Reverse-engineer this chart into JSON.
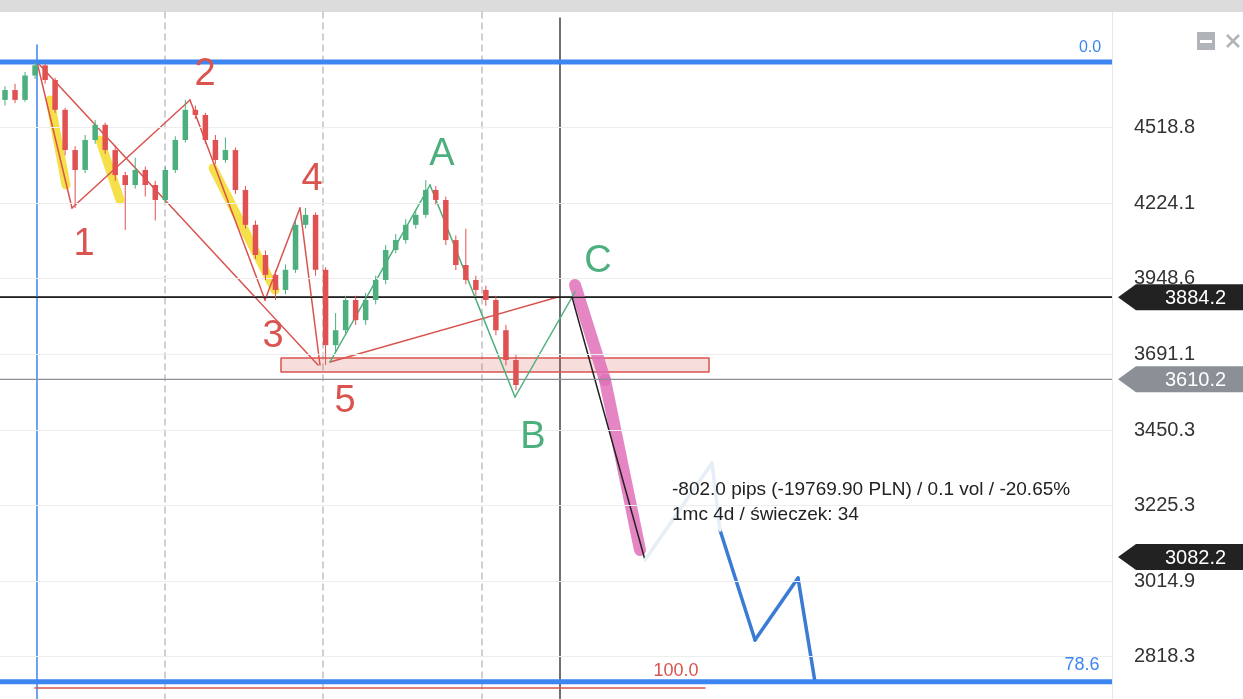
{
  "chart_data": {
    "type": "candlestick",
    "categories": [
      null,
      null,
      null,
      null,
      null,
      null,
      null,
      null,
      null,
      null,
      null,
      null,
      null,
      null,
      null,
      null,
      null,
      null,
      null,
      null,
      null,
      null,
      null,
      null,
      null,
      null,
      null,
      null,
      null,
      null,
      null,
      null,
      null,
      null,
      null,
      null,
      null,
      null,
      null,
      null,
      null,
      null,
      null,
      null,
      null,
      null,
      null,
      null,
      null,
      null,
      null,
      null,
      null,
      null,
      null,
      null,
      null,
      null,
      null,
      null,
      null,
      null,
      null,
      null,
      null,
      null,
      null,
      null,
      null,
      null,
      null,
      null,
      null,
      null,
      null,
      null,
      null,
      null,
      null,
      null,
      null,
      null,
      null,
      null,
      null,
      null,
      null,
      null,
      null,
      null,
      null,
      null,
      null,
      null,
      null,
      null,
      null,
      null,
      null,
      null,
      null,
      null,
      null,
      null,
      null,
      null,
      null,
      null,
      null,
      null,
      null
    ],
    "ohlc": [
      [
        4633,
        4690,
        4610,
        4674
      ],
      [
        4674,
        4700,
        4620,
        4633
      ],
      [
        4633,
        4750,
        4625,
        4735
      ],
      [
        4735,
        4792,
        4720,
        4778
      ],
      [
        4778,
        4785,
        4700,
        4716
      ],
      [
        4716,
        4725,
        4580,
        4592
      ],
      [
        4592,
        4600,
        4410,
        4430
      ],
      [
        4430,
        4445,
        4207,
        4352
      ],
      [
        4352,
        4490,
        4340,
        4470
      ],
      [
        4470,
        4550,
        4455,
        4531
      ],
      [
        4531,
        4540,
        4415,
        4430
      ],
      [
        4430,
        4450,
        4310,
        4332
      ],
      [
        4332,
        4345,
        4125,
        4294
      ],
      [
        4294,
        4400,
        4280,
        4352
      ],
      [
        4352,
        4365,
        4250,
        4294
      ],
      [
        4294,
        4310,
        4160,
        4237
      ],
      [
        4237,
        4365,
        4225,
        4352
      ],
      [
        4352,
        4485,
        4340,
        4470
      ],
      [
        4470,
        4633,
        4460,
        4592
      ],
      [
        4592,
        4610,
        4555,
        4571
      ],
      [
        4571,
        4580,
        4455,
        4470
      ],
      [
        4470,
        4490,
        4375,
        4391
      ],
      [
        4391,
        4480,
        4380,
        4430
      ],
      [
        4430,
        4440,
        4260,
        4275
      ],
      [
        4275,
        4290,
        4130,
        4144
      ],
      [
        4144,
        4160,
        4020,
        4034
      ],
      [
        4034,
        4050,
        3945,
        3963
      ],
      [
        3963,
        3980,
        3875,
        3910
      ],
      [
        3910,
        4000,
        3895,
        3981
      ],
      [
        3981,
        4160,
        3970,
        4144
      ],
      [
        4144,
        4207,
        4130,
        4181
      ],
      [
        4181,
        4190,
        3960,
        3981
      ],
      [
        3981,
        3990,
        3657,
        3722
      ],
      [
        3722,
        3830,
        3700,
        3772
      ],
      [
        3772,
        3890,
        3760,
        3875
      ],
      [
        3875,
        3890,
        3790,
        3806
      ],
      [
        3806,
        3900,
        3790,
        3875
      ],
      [
        3875,
        3960,
        3860,
        3945
      ],
      [
        3945,
        4070,
        3930,
        4052
      ],
      [
        4052,
        4110,
        4040,
        4088
      ],
      [
        4088,
        4165,
        4075,
        4144
      ],
      [
        4144,
        4200,
        4130,
        4181
      ],
      [
        4181,
        4313,
        4170,
        4275
      ],
      [
        4275,
        4290,
        4220,
        4237
      ],
      [
        4237,
        4250,
        4070,
        4088
      ],
      [
        4088,
        4105,
        3980,
        3998
      ],
      [
        3998,
        4130,
        3930,
        3945
      ],
      [
        3945,
        3960,
        3890,
        3910
      ],
      [
        3910,
        3925,
        3855,
        3875
      ],
      [
        3875,
        3890,
        3755,
        3772
      ],
      [
        3772,
        3790,
        3655,
        3673
      ],
      [
        3673,
        3690,
        3575,
        3592
      ],
      null,
      null,
      null,
      null,
      null,
      null,
      null,
      null,
      null,
      null,
      null,
      null,
      null,
      null,
      null,
      null,
      null,
      null,
      null,
      null,
      null,
      null,
      null,
      null,
      null,
      null,
      null,
      null,
      null,
      null,
      null,
      null,
      null,
      null,
      null,
      null,
      null,
      null,
      null,
      null,
      null,
      null,
      null,
      null,
      null,
      null,
      null,
      null,
      null,
      null,
      null,
      null,
      null,
      null,
      null,
      null,
      null,
      null,
      null
    ],
    "ref_lines": [
      {
        "axis": "y",
        "value": 4792,
        "color": "#3d85f0"
      },
      {
        "axis": "y",
        "value": 2756,
        "color": "#3d85f0"
      },
      {
        "axis": "y",
        "value": 3884.2,
        "label": "3884.2",
        "color": "#222222"
      },
      {
        "axis": "y",
        "value": 3610.2,
        "label": "3610.2",
        "color": "#8a9095"
      }
    ],
    "annotations": [
      "1",
      "2",
      "3",
      "4",
      "5",
      "A",
      "B",
      "C",
      "-802.0 pips (-19769.90 PLN) / 0.1 vol / -20.65%",
      "1mc 4d / świeczek: 34",
      "100.0",
      "78.6",
      "0.0",
      "3082.2"
    ],
    "ylim": [
      2714,
      5011
    ],
    "yticks": [
      4518.8,
      4224.1,
      3948.6,
      3691.1,
      3450.3,
      3225.3,
      3014.9,
      2818.3
    ],
    "log": true,
    "grid": "y",
    "tick_labels": "y"
  }
}
